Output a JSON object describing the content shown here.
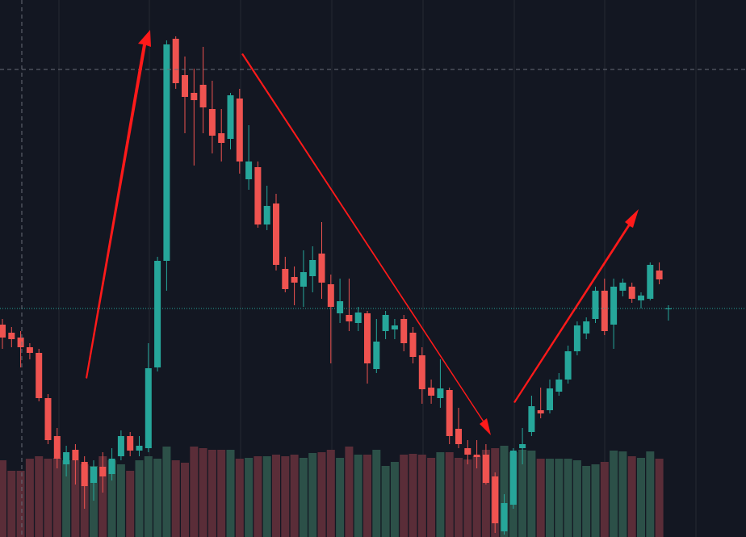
{
  "chart_data": {
    "type": "candlestick",
    "ylim": [
      0,
      665
    ],
    "volume_lim": [
      0,
      665
    ],
    "up_color": "#26a69a",
    "down_color": "#ef5350",
    "volume_up_color": "#2c5048",
    "volume_down_color": "#5a2d38",
    "open": [
      263,
      253,
      247,
      235,
      228,
      172,
      125,
      90,
      108,
      93,
      67,
      87,
      78,
      100,
      125,
      107,
      110,
      210,
      342,
      617,
      572,
      550,
      560,
      530,
      500,
      493,
      543,
      443,
      458,
      387,
      413,
      332,
      322,
      310,
      323,
      351,
      313,
      277,
      275,
      265,
      277,
      208,
      255,
      257,
      270,
      253,
      225,
      185,
      172,
      182,
      134,
      110,
      102,
      102,
      75,
      7,
      40,
      110,
      130,
      157,
      157,
      180,
      195,
      230,
      252,
      270,
      305,
      263,
      305,
      310,
      293,
      295,
      330,
      282
    ],
    "high": [
      270,
      260,
      255,
      240,
      233,
      177,
      135,
      113,
      115,
      100,
      95,
      105,
      110,
      132,
      130,
      125,
      240,
      347,
      615,
      620,
      595,
      580,
      607,
      565,
      530,
      550,
      555,
      510,
      465,
      435,
      425,
      347,
      335,
      355,
      360,
      390,
      325,
      320,
      320,
      285,
      280,
      270,
      280,
      270,
      275,
      260,
      235,
      195,
      220,
      185,
      160,
      120,
      120,
      115,
      80,
      53,
      110,
      135,
      175,
      185,
      195,
      203,
      237,
      267,
      272,
      310,
      320,
      320,
      320,
      315,
      303,
      340,
      340,
      287
    ],
    "low": [
      233,
      235,
      210,
      220,
      168,
      115,
      85,
      75,
      65,
      35,
      45,
      55,
      70,
      95,
      100,
      100,
      105,
      205,
      305,
      555,
      500,
      460,
      500,
      475,
      465,
      480,
      450,
      430,
      383,
      380,
      330,
      303,
      287,
      285,
      303,
      295,
      215,
      265,
      255,
      255,
      190,
      203,
      245,
      245,
      230,
      215,
      165,
      165,
      160,
      115,
      110,
      90,
      85,
      65,
      5,
      3,
      35,
      90,
      125,
      147,
      153,
      175,
      190,
      225,
      245,
      265,
      250,
      233,
      298,
      290,
      283,
      293,
      313,
      268
    ],
    "close": [
      247,
      245,
      235,
      228,
      172,
      120,
      97,
      105,
      95,
      63,
      87,
      75,
      97,
      125,
      107,
      113,
      209,
      342,
      610,
      562,
      545,
      541,
      532,
      497,
      488,
      547,
      465,
      465,
      387,
      410,
      337,
      307,
      315,
      328,
      343,
      315,
      285,
      292,
      267,
      278,
      215,
      242,
      275,
      262,
      240,
      223,
      183,
      175,
      184,
      125,
      115,
      102,
      99,
      67,
      17,
      42,
      107,
      115,
      162,
      153,
      184,
      195,
      230,
      262,
      267,
      305,
      255,
      310,
      315,
      295,
      299,
      337,
      319,
      283
    ],
    "volume": [
      95,
      82,
      82,
      97,
      100,
      97,
      98,
      95,
      95,
      90,
      88,
      100,
      95,
      90,
      82,
      95,
      100,
      97,
      112,
      95,
      92,
      112,
      110,
      108,
      108,
      108,
      97,
      98,
      100,
      100,
      102,
      100,
      102,
      98,
      104,
      105,
      108,
      98,
      112,
      102,
      102,
      108,
      88,
      93,
      102,
      103,
      102,
      98,
      105,
      105,
      98,
      96,
      100,
      108,
      110,
      113,
      105,
      108,
      107,
      97,
      97,
      97,
      97,
      95,
      88,
      90,
      93,
      107,
      106,
      100,
      98,
      106,
      97,
      null
    ]
  }
}
